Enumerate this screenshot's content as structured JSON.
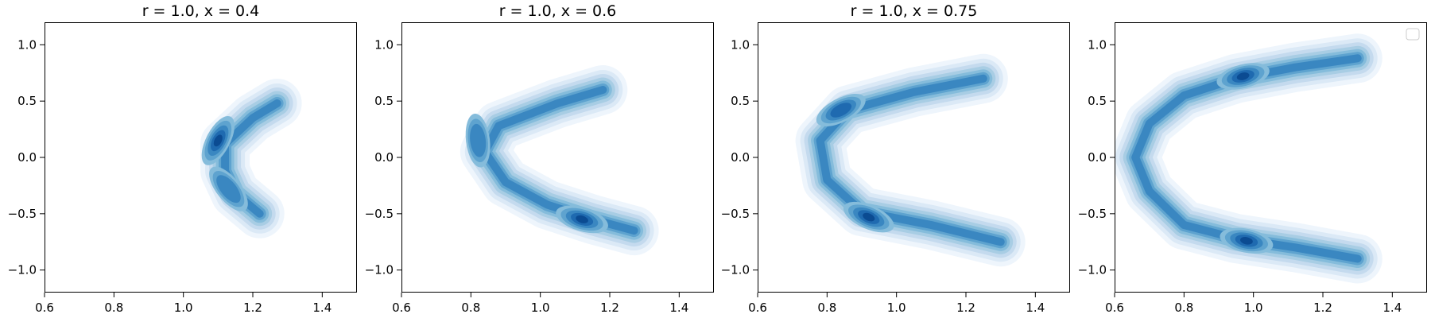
{
  "chart_data": [
    {
      "type": "contour",
      "title": "r = 1.0, x = 0.4",
      "xlabel": "",
      "ylabel": "",
      "xlim": [
        0.6,
        1.5
      ],
      "ylim": [
        -1.2,
        1.2
      ],
      "xticks": [
        0.6,
        0.8,
        1.0,
        1.2,
        1.4
      ],
      "xtick_labels": [
        "0.6",
        "0.8",
        "1.0",
        "1.2",
        "1.4"
      ],
      "yticks": [
        1.0,
        0.5,
        0.0,
        -0.5,
        -1.0
      ],
      "ytick_labels": [
        "1.0",
        "0.5",
        "0.0",
        "−0.5",
        "−1.0"
      ],
      "density": {
        "kind": "crescent",
        "cusps": [
          {
            "x": 1.3,
            "y": 0.55
          },
          {
            "x": 1.25,
            "y": -0.6
          }
        ],
        "bend": {
          "x": 0.9,
          "y": 0.0
        },
        "centroids": [
          [
            1.27,
            0.48
          ],
          [
            1.2,
            0.35
          ],
          [
            1.12,
            0.12
          ],
          [
            1.12,
            -0.12
          ],
          [
            1.15,
            -0.32
          ],
          [
            1.22,
            -0.5
          ]
        ],
        "peaks": [
          {
            "x": 1.1,
            "y": 0.15,
            "weight": 1.0
          },
          {
            "x": 1.13,
            "y": -0.28,
            "weight": 0.7
          }
        ]
      },
      "legend": {
        "visible": false,
        "location": "",
        "entries": []
      }
    },
    {
      "type": "contour",
      "title": "r = 1.0, x = 0.6",
      "xlabel": "",
      "ylabel": "",
      "xlim": [
        0.6,
        1.5
      ],
      "ylim": [
        -1.2,
        1.2
      ],
      "xticks": [
        0.6,
        0.8,
        1.0,
        1.2,
        1.4
      ],
      "xtick_labels": [
        "0.6",
        "0.8",
        "1.0",
        "1.2",
        "1.4"
      ],
      "yticks": [
        1.0,
        0.5,
        0.0,
        -0.5,
        -1.0
      ],
      "ytick_labels": [
        "1.0",
        "0.5",
        "0.0",
        "−0.5",
        "−1.0"
      ],
      "density": {
        "kind": "crescent",
        "cusps": [
          {
            "x": 1.22,
            "y": 0.62
          },
          {
            "x": 1.32,
            "y": -0.72
          }
        ],
        "bend": {
          "x": 0.72,
          "y": 0.0
        },
        "centroids": [
          [
            1.18,
            0.6
          ],
          [
            1.05,
            0.48
          ],
          [
            0.88,
            0.28
          ],
          [
            0.84,
            0.05
          ],
          [
            0.9,
            -0.22
          ],
          [
            1.02,
            -0.42
          ],
          [
            1.15,
            -0.55
          ],
          [
            1.27,
            -0.65
          ]
        ],
        "peaks": [
          {
            "x": 1.12,
            "y": -0.55,
            "weight": 1.0
          },
          {
            "x": 0.82,
            "y": 0.15,
            "weight": 0.55
          }
        ]
      },
      "legend": {
        "visible": false,
        "location": "",
        "entries": []
      }
    },
    {
      "type": "contour",
      "title": "r = 1.0, x = 0.75",
      "xlabel": "",
      "ylabel": "",
      "xlim": [
        0.6,
        1.5
      ],
      "ylim": [
        -1.2,
        1.2
      ],
      "xticks": [
        0.6,
        0.8,
        1.0,
        1.2,
        1.4
      ],
      "xtick_labels": [
        "0.6",
        "0.8",
        "1.0",
        "1.2",
        "1.4"
      ],
      "yticks": [
        1.0,
        0.5,
        0.0,
        -0.5,
        -1.0
      ],
      "ytick_labels": [
        "1.0",
        "0.5",
        "0.0",
        "−0.5",
        "−1.0"
      ],
      "density": {
        "kind": "crescent",
        "cusps": [
          {
            "x": 1.35,
            "y": 0.8
          },
          {
            "x": 1.4,
            "y": -0.85
          }
        ],
        "bend": {
          "x": 0.6,
          "y": 0.0
        },
        "centroids": [
          [
            1.25,
            0.7
          ],
          [
            1.05,
            0.58
          ],
          [
            0.86,
            0.42
          ],
          [
            0.78,
            0.15
          ],
          [
            0.8,
            -0.2
          ],
          [
            0.9,
            -0.48
          ],
          [
            1.1,
            -0.6
          ],
          [
            1.3,
            -0.75
          ]
        ],
        "peaks": [
          {
            "x": 0.92,
            "y": -0.53,
            "weight": 1.0
          },
          {
            "x": 0.84,
            "y": 0.42,
            "weight": 0.8
          }
        ]
      },
      "legend": {
        "visible": false,
        "location": "",
        "entries": []
      }
    },
    {
      "type": "contour",
      "title": "",
      "xlabel": "",
      "ylabel": "",
      "xlim": [
        0.6,
        1.5
      ],
      "ylim": [
        -1.2,
        1.2
      ],
      "xticks": [
        0.6,
        0.8,
        1.0,
        1.2,
        1.4
      ],
      "xtick_labels": [
        "0.6",
        "0.8",
        "1.0",
        "1.2",
        "1.4"
      ],
      "yticks": [
        1.0,
        0.5,
        0.0,
        -0.5,
        -1.0
      ],
      "ytick_labels": [
        "1.0",
        "0.5",
        "0.0",
        "−0.5",
        "−1.0"
      ],
      "density": {
        "kind": "crescent",
        "cusps": [
          {
            "x": 1.45,
            "y": 1.0
          },
          {
            "x": 1.45,
            "y": -1.0
          }
        ],
        "bend": {
          "x": 0.6,
          "y": 0.0
        },
        "centroids": [
          [
            1.3,
            0.88
          ],
          [
            1.12,
            0.8
          ],
          [
            0.95,
            0.7
          ],
          [
            0.8,
            0.55
          ],
          [
            0.7,
            0.3
          ],
          [
            0.66,
            0.0
          ],
          [
            0.7,
            -0.3
          ],
          [
            0.8,
            -0.6
          ],
          [
            0.95,
            -0.72
          ],
          [
            1.12,
            -0.8
          ],
          [
            1.3,
            -0.9
          ]
        ],
        "peaks": [
          {
            "x": 0.97,
            "y": 0.72,
            "weight": 1.0
          },
          {
            "x": 0.98,
            "y": -0.74,
            "weight": 1.0
          }
        ]
      },
      "legend": {
        "visible": true,
        "location": "upper right",
        "entries": []
      }
    }
  ]
}
